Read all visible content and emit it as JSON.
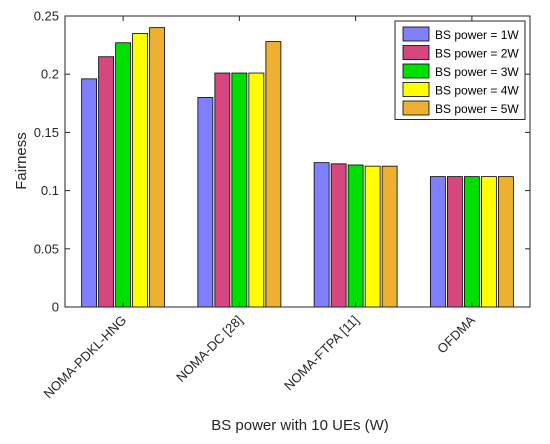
{
  "chart_data": {
    "type": "bar",
    "title": "",
    "xlabel": "BS power with 10 UEs (W)",
    "ylabel": "Fairness",
    "ylim": [
      0,
      0.25
    ],
    "yticks": [
      0,
      0.05,
      0.1,
      0.15,
      0.2,
      0.25
    ],
    "ytick_labels": [
      "0",
      "0.05",
      "0.1",
      "0.15",
      "0.2",
      "0.25"
    ],
    "categories": [
      "NOMA-PDKL-HNG",
      "NOMA-DC [28]",
      "NOMA-FTPA [11]",
      "OFDMA"
    ],
    "grid": false,
    "legend_position": "top-right",
    "series": [
      {
        "name": "BS power = 1W",
        "color": "#8080ff",
        "values": [
          0.196,
          0.18,
          0.124,
          0.112
        ]
      },
      {
        "name": "BS power = 2W",
        "color": "#d6477f",
        "values": [
          0.215,
          0.201,
          0.123,
          0.112
        ]
      },
      {
        "name": "BS power = 3W",
        "color": "#00e000",
        "values": [
          0.227,
          0.201,
          0.122,
          0.112
        ]
      },
      {
        "name": "BS power = 4W",
        "color": "#ffff00",
        "values": [
          0.235,
          0.201,
          0.121,
          0.112
        ]
      },
      {
        "name": "BS power = 5W",
        "color": "#eeb030",
        "values": [
          0.24,
          0.228,
          0.121,
          0.112
        ]
      }
    ]
  }
}
